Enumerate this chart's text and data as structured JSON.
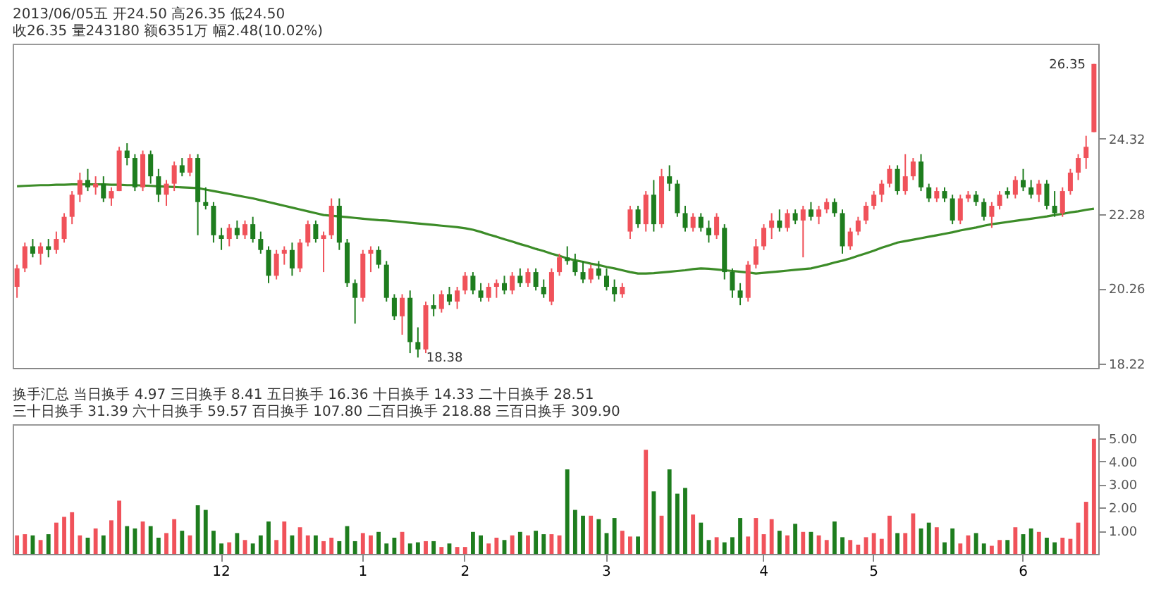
{
  "chart_data": [
    {
      "type": "candlestick",
      "subtitle": "2013/06/05五 开24.50 高26.35 低24.50 收26.35 量243180 额6351万 幅2.48(10.02%)",
      "categories": [
        null,
        null,
        null,
        null,
        null,
        null,
        null,
        null,
        null,
        null,
        null,
        null,
        null,
        null,
        null,
        null,
        null,
        null,
        null,
        null,
        null,
        null,
        null,
        null,
        null,
        null,
        "12",
        null,
        null,
        null,
        null,
        null,
        null,
        null,
        null,
        null,
        null,
        null,
        null,
        null,
        null,
        null,
        null,
        null,
        "1",
        null,
        null,
        null,
        null,
        null,
        null,
        null,
        null,
        null,
        null,
        null,
        null,
        "2",
        null,
        null,
        null,
        null,
        null,
        null,
        null,
        null,
        null,
        null,
        null,
        null,
        null,
        null,
        null,
        null,
        null,
        "3",
        null,
        null,
        null,
        null,
        null,
        null,
        null,
        null,
        null,
        null,
        null,
        null,
        null,
        null,
        null,
        null,
        null,
        null,
        null,
        "4",
        null,
        null,
        null,
        null,
        null,
        null,
        null,
        null,
        null,
        null,
        null,
        null,
        null,
        "5",
        null,
        null,
        null,
        null,
        null,
        null,
        null,
        null,
        null,
        null,
        null,
        null,
        null,
        null,
        null,
        null,
        null,
        null,
        "6",
        null,
        null,
        null,
        null,
        null,
        null,
        null,
        null,
        null
      ],
      "ohlc": [
        [
          20.3,
          20.9,
          20.0,
          20.8
        ],
        [
          20.8,
          21.5,
          20.7,
          21.4
        ],
        [
          21.4,
          21.6,
          21.1,
          21.2
        ],
        [
          21.2,
          21.5,
          20.9,
          21.4
        ],
        [
          21.4,
          21.6,
          21.1,
          21.3
        ],
        [
          21.3,
          21.8,
          21.2,
          21.6
        ],
        [
          21.6,
          22.3,
          21.5,
          22.2
        ],
        [
          22.2,
          22.9,
          22.0,
          22.8
        ],
        [
          22.8,
          23.4,
          22.6,
          23.2
        ],
        [
          23.2,
          23.5,
          22.9,
          23.0
        ],
        [
          23.0,
          23.3,
          22.8,
          23.1
        ],
        [
          23.1,
          23.3,
          22.6,
          22.7
        ],
        [
          22.7,
          23.0,
          22.5,
          22.9
        ],
        [
          22.9,
          24.1,
          22.9,
          24.0
        ],
        [
          24.0,
          24.2,
          23.6,
          23.8
        ],
        [
          23.8,
          23.9,
          22.9,
          23.0
        ],
        [
          23.0,
          24.0,
          22.9,
          23.9
        ],
        [
          23.9,
          24.0,
          23.1,
          23.3
        ],
        [
          23.3,
          23.5,
          22.6,
          22.8
        ],
        [
          22.8,
          23.2,
          22.5,
          23.1
        ],
        [
          23.1,
          23.7,
          22.9,
          23.6
        ],
        [
          23.6,
          23.8,
          23.3,
          23.4
        ],
        [
          23.4,
          23.9,
          23.3,
          23.8
        ],
        [
          23.8,
          23.9,
          21.7,
          22.6
        ],
        [
          22.6,
          23.0,
          22.4,
          22.5
        ],
        [
          22.5,
          22.6,
          21.5,
          21.7
        ],
        [
          21.7,
          21.9,
          21.3,
          21.6
        ],
        [
          21.6,
          22.0,
          21.4,
          21.9
        ],
        [
          21.9,
          22.1,
          21.6,
          21.7
        ],
        [
          21.7,
          22.1,
          21.6,
          22.0
        ],
        [
          22.0,
          22.2,
          21.5,
          21.6
        ],
        [
          21.6,
          21.8,
          21.2,
          21.3
        ],
        [
          21.3,
          21.4,
          20.4,
          20.6
        ],
        [
          20.6,
          21.3,
          20.5,
          21.2
        ],
        [
          21.2,
          21.4,
          20.9,
          21.3
        ],
        [
          21.3,
          21.5,
          20.6,
          20.8
        ],
        [
          20.8,
          21.6,
          20.7,
          21.5
        ],
        [
          21.5,
          22.1,
          21.4,
          22.0
        ],
        [
          22.0,
          22.1,
          21.5,
          21.6
        ],
        [
          21.6,
          21.8,
          20.7,
          21.7
        ],
        [
          21.7,
          22.7,
          21.6,
          22.5
        ],
        [
          22.5,
          22.7,
          21.3,
          21.5
        ],
        [
          21.5,
          21.6,
          20.3,
          20.4
        ],
        [
          20.4,
          20.5,
          19.3,
          20.0
        ],
        [
          20.0,
          21.3,
          19.9,
          21.2
        ],
        [
          21.2,
          21.4,
          20.7,
          21.3
        ],
        [
          21.3,
          21.4,
          20.8,
          20.9
        ],
        [
          20.9,
          21.0,
          19.9,
          20.0
        ],
        [
          20.0,
          20.1,
          19.4,
          19.5
        ],
        [
          19.5,
          20.1,
          19.0,
          20.0
        ],
        [
          20.0,
          20.2,
          18.5,
          18.8
        ],
        [
          18.8,
          19.2,
          18.38,
          18.6
        ],
        [
          18.6,
          19.9,
          18.5,
          19.8
        ],
        [
          19.8,
          20.1,
          19.5,
          19.7
        ],
        [
          19.7,
          20.2,
          19.6,
          20.1
        ],
        [
          20.1,
          20.3,
          19.8,
          19.9
        ],
        [
          19.9,
          20.3,
          19.7,
          20.2
        ],
        [
          20.2,
          20.7,
          20.1,
          20.6
        ],
        [
          20.6,
          20.7,
          20.1,
          20.2
        ],
        [
          20.2,
          20.4,
          19.9,
          20.0
        ],
        [
          20.0,
          20.4,
          19.9,
          20.3
        ],
        [
          20.3,
          20.5,
          20.0,
          20.4
        ],
        [
          20.4,
          20.6,
          20.1,
          20.2
        ],
        [
          20.2,
          20.7,
          20.1,
          20.6
        ],
        [
          20.6,
          20.8,
          20.3,
          20.4
        ],
        [
          20.4,
          20.8,
          20.3,
          20.7
        ],
        [
          20.7,
          20.8,
          20.2,
          20.3
        ],
        [
          20.3,
          20.5,
          20.0,
          20.1
        ],
        [
          19.9,
          20.8,
          19.8,
          20.7
        ],
        [
          20.7,
          21.2,
          20.6,
          21.1
        ],
        [
          21.1,
          21.4,
          20.9,
          21.0
        ],
        [
          21.0,
          21.2,
          20.6,
          20.7
        ],
        [
          20.7,
          21.0,
          20.4,
          20.5
        ],
        [
          20.5,
          20.9,
          20.4,
          20.8
        ],
        [
          20.8,
          21.0,
          20.5,
          20.6
        ],
        [
          20.6,
          20.8,
          20.2,
          20.3
        ],
        [
          20.3,
          20.5,
          19.9,
          20.1
        ],
        [
          20.1,
          20.4,
          20.0,
          20.3
        ],
        [
          21.8,
          22.5,
          21.6,
          22.4
        ],
        [
          22.4,
          22.5,
          21.9,
          22.0
        ],
        [
          22.0,
          22.9,
          21.8,
          22.8
        ],
        [
          22.8,
          23.2,
          21.8,
          22.0
        ],
        [
          22.0,
          23.5,
          21.9,
          23.3
        ],
        [
          23.3,
          23.6,
          22.9,
          23.1
        ],
        [
          23.1,
          23.2,
          22.2,
          22.3
        ],
        [
          22.3,
          22.5,
          21.8,
          21.9
        ],
        [
          21.9,
          22.3,
          21.8,
          22.2
        ],
        [
          22.2,
          22.3,
          21.8,
          21.9
        ],
        [
          21.9,
          22.1,
          21.5,
          21.7
        ],
        [
          21.7,
          22.3,
          21.6,
          22.2
        ],
        [
          21.9,
          22.0,
          20.5,
          20.7
        ],
        [
          20.7,
          20.8,
          20.0,
          20.2
        ],
        [
          20.2,
          20.4,
          19.8,
          20.0
        ],
        [
          20.0,
          21.0,
          19.9,
          20.9
        ],
        [
          20.9,
          21.6,
          20.8,
          21.4
        ],
        [
          21.4,
          22.0,
          21.3,
          21.9
        ],
        [
          21.9,
          22.3,
          21.6,
          22.1
        ],
        [
          22.1,
          22.4,
          21.8,
          21.9
        ],
        [
          21.9,
          22.4,
          21.8,
          22.3
        ],
        [
          22.3,
          22.4,
          22.0,
          22.1
        ],
        [
          22.1,
          22.5,
          21.1,
          22.4
        ],
        [
          22.4,
          22.6,
          22.1,
          22.2
        ],
        [
          22.2,
          22.5,
          22.0,
          22.4
        ],
        [
          22.4,
          22.7,
          22.3,
          22.6
        ],
        [
          22.6,
          22.7,
          22.2,
          22.3
        ],
        [
          22.3,
          22.4,
          21.2,
          21.4
        ],
        [
          21.4,
          21.9,
          21.3,
          21.8
        ],
        [
          21.8,
          22.2,
          21.7,
          22.1
        ],
        [
          22.1,
          22.6,
          22.0,
          22.5
        ],
        [
          22.5,
          22.9,
          22.4,
          22.8
        ],
        [
          22.8,
          23.2,
          22.6,
          23.1
        ],
        [
          23.1,
          23.6,
          23.0,
          23.5
        ],
        [
          23.5,
          23.6,
          22.8,
          22.9
        ],
        [
          22.9,
          23.9,
          22.8,
          23.3
        ],
        [
          23.3,
          23.8,
          23.2,
          23.7
        ],
        [
          23.7,
          23.9,
          22.9,
          23.0
        ],
        [
          23.0,
          23.1,
          22.6,
          22.7
        ],
        [
          22.7,
          23.0,
          22.6,
          22.9
        ],
        [
          22.9,
          23.0,
          22.6,
          22.7
        ],
        [
          22.7,
          22.8,
          22.0,
          22.1
        ],
        [
          22.1,
          22.8,
          22.0,
          22.7
        ],
        [
          22.7,
          22.9,
          22.6,
          22.8
        ],
        [
          22.8,
          22.9,
          22.5,
          22.6
        ],
        [
          22.6,
          22.7,
          22.1,
          22.2
        ],
        [
          22.2,
          22.6,
          21.9,
          22.5
        ],
        [
          22.5,
          22.9,
          22.4,
          22.8
        ],
        [
          22.9,
          23.0,
          22.7,
          22.8
        ],
        [
          22.8,
          23.3,
          22.7,
          23.2
        ],
        [
          23.2,
          23.5,
          22.9,
          23.0
        ],
        [
          23.0,
          23.2,
          22.7,
          22.8
        ],
        [
          22.8,
          23.2,
          22.6,
          23.1
        ],
        [
          23.1,
          23.2,
          22.4,
          22.5
        ],
        [
          22.5,
          22.9,
          22.2,
          22.3
        ],
        [
          22.3,
          23.0,
          22.2,
          22.9
        ],
        [
          22.9,
          23.5,
          22.8,
          23.4
        ],
        [
          23.4,
          23.9,
          23.2,
          23.8
        ],
        [
          23.8,
          24.4,
          23.5,
          24.1
        ],
        [
          24.5,
          26.35,
          24.5,
          26.35
        ]
      ],
      "colors": [
        "#f0525a",
        "#f0525a",
        "#1e7d1e",
        "#f0525a",
        "#1e7d1e",
        "#f0525a",
        "#f0525a",
        "#f0525a",
        "#f0525a",
        "#1e7d1e",
        "#f0525a",
        "#1e7d1e",
        "#f0525a",
        "#f0525a",
        "#1e7d1e",
        "#1e7d1e",
        "#f0525a",
        "#1e7d1e",
        "#1e7d1e",
        "#f0525a",
        "#f0525a",
        "#1e7d1e",
        "#f0525a",
        "#1e7d1e",
        "#1e7d1e",
        "#1e7d1e",
        "#1e7d1e",
        "#f0525a",
        "#1e7d1e",
        "#f0525a",
        "#1e7d1e",
        "#1e7d1e",
        "#1e7d1e",
        "#f0525a",
        "#f0525a",
        "#1e7d1e",
        "#f0525a",
        "#f0525a",
        "#1e7d1e",
        "#f0525a",
        "#f0525a",
        "#1e7d1e",
        "#1e7d1e",
        "#1e7d1e",
        "#f0525a",
        "#f0525a",
        "#1e7d1e",
        "#1e7d1e",
        "#1e7d1e",
        "#f0525a",
        "#1e7d1e",
        "#1e7d1e",
        "#f0525a",
        "#1e7d1e",
        "#f0525a",
        "#1e7d1e",
        "#f0525a",
        "#f0525a",
        "#1e7d1e",
        "#1e7d1e",
        "#f0525a",
        "#f0525a",
        "#1e7d1e",
        "#f0525a",
        "#1e7d1e",
        "#f0525a",
        "#1e7d1e",
        "#1e7d1e",
        "#f0525a",
        "#f0525a",
        "#1e7d1e",
        "#1e7d1e",
        "#1e7d1e",
        "#f0525a",
        "#1e7d1e",
        "#1e7d1e",
        "#1e7d1e",
        "#f0525a",
        "#f0525a",
        "#1e7d1e",
        "#f0525a",
        "#1e7d1e",
        "#f0525a",
        "#1e7d1e",
        "#1e7d1e",
        "#1e7d1e",
        "#f0525a",
        "#1e7d1e",
        "#1e7d1e",
        "#f0525a",
        "#1e7d1e",
        "#1e7d1e",
        "#1e7d1e",
        "#f0525a",
        "#f0525a",
        "#f0525a",
        "#f0525a",
        "#1e7d1e",
        "#f0525a",
        "#1e7d1e",
        "#f0525a",
        "#1e7d1e",
        "#f0525a",
        "#f0525a",
        "#1e7d1e",
        "#1e7d1e",
        "#f0525a",
        "#f0525a",
        "#f0525a",
        "#f0525a",
        "#f0525a",
        "#f0525a",
        "#1e7d1e",
        "#f0525a",
        "#f0525a",
        "#1e7d1e",
        "#1e7d1e",
        "#f0525a",
        "#1e7d1e",
        "#1e7d1e",
        "#f0525a",
        "#f0525a",
        "#1e7d1e",
        "#1e7d1e",
        "#f0525a",
        "#f0525a",
        "#1e7d1e",
        "#f0525a",
        "#1e7d1e",
        "#1e7d1e",
        "#f0525a",
        "#1e7d1e",
        "#1e7d1e",
        "#f0525a",
        "#f0525a",
        "#f0525a",
        "#f0525a",
        "#f0525a"
      ],
      "series": [
        {
          "type": "line",
          "color": "#3c8c28",
          "values": [
            23.03,
            23.04,
            23.05,
            23.06,
            23.06,
            23.07,
            23.07,
            23.08,
            23.08,
            23.08,
            23.08,
            23.08,
            23.07,
            23.07,
            23.06,
            23.06,
            23.05,
            23.04,
            23.03,
            23.02,
            23.01,
            23.0,
            22.99,
            22.98,
            22.94,
            22.9,
            22.86,
            22.82,
            22.78,
            22.74,
            22.7,
            22.65,
            22.6,
            22.55,
            22.5,
            22.45,
            22.4,
            22.35,
            22.3,
            22.25,
            22.23,
            22.21,
            22.19,
            22.17,
            22.15,
            22.13,
            22.11,
            22.1,
            22.08,
            22.06,
            22.04,
            22.02,
            22.0,
            21.98,
            21.96,
            21.94,
            21.92,
            21.89,
            21.85,
            21.79,
            21.72,
            21.66,
            21.59,
            21.53,
            21.46,
            21.4,
            21.33,
            21.27,
            21.2,
            21.14,
            21.07,
            21.02,
            20.98,
            20.93,
            20.89,
            20.84,
            20.8,
            20.75,
            20.7,
            20.66,
            20.66,
            20.67,
            20.69,
            20.71,
            20.73,
            20.75,
            20.78,
            20.8,
            20.79,
            20.77,
            20.75,
            20.73,
            20.71,
            20.69,
            20.66,
            20.68,
            20.7,
            20.72,
            20.74,
            20.76,
            20.78,
            20.8,
            20.85,
            20.9,
            20.96,
            21.01,
            21.07,
            21.14,
            21.21,
            21.28,
            21.36,
            21.43,
            21.5,
            21.54,
            21.58,
            21.62,
            21.66,
            21.7,
            21.74,
            21.78,
            21.83,
            21.87,
            21.91,
            21.96,
            22.0,
            22.03,
            22.06,
            22.09,
            22.12,
            22.15,
            22.18,
            22.21,
            22.25,
            22.28,
            22.32,
            22.35,
            22.39,
            22.42
          ]
        }
      ],
      "ylim": [
        18.1,
        26.9
      ],
      "yticks": [
        18.22,
        20.26,
        22.28,
        24.32
      ],
      "tick_labels": "y",
      "annotations": [
        "18.38",
        "26.35"
      ]
    },
    {
      "type": "bar",
      "title": "换手汇总 当日换手 4.97 三日换手 8.41 五日换手 16.36 十日换手 14.33 二十日换手 28.51 三十日换手 31.39 六十日换手 59.57 百日换手 107.80 二百日换手 218.88 三百日换手 309.90",
      "categories": [
        null,
        null,
        null,
        null,
        null,
        null,
        null,
        null,
        null,
        null,
        null,
        null,
        null,
        null,
        null,
        null,
        null,
        null,
        null,
        null,
        null,
        null,
        null,
        null,
        null,
        null,
        "12",
        null,
        null,
        null,
        null,
        null,
        null,
        null,
        null,
        null,
        null,
        null,
        null,
        null,
        null,
        null,
        null,
        null,
        "1",
        null,
        null,
        null,
        null,
        null,
        null,
        null,
        null,
        null,
        null,
        null,
        null,
        "2",
        null,
        null,
        null,
        null,
        null,
        null,
        null,
        null,
        null,
        null,
        null,
        null,
        null,
        null,
        null,
        null,
        null,
        "3",
        null,
        null,
        null,
        null,
        null,
        null,
        null,
        null,
        null,
        null,
        null,
        null,
        null,
        null,
        null,
        null,
        null,
        null,
        null,
        "4",
        null,
        null,
        null,
        null,
        null,
        null,
        null,
        null,
        null,
        null,
        null,
        null,
        null,
        "5",
        null,
        null,
        null,
        null,
        null,
        null,
        null,
        null,
        null,
        null,
        null,
        null,
        null,
        null,
        null,
        null,
        null,
        null,
        "6",
        null,
        null,
        null,
        null,
        null,
        null,
        null,
        null,
        null
      ],
      "values": [
        0.8,
        0.85,
        0.8,
        0.6,
        0.85,
        1.35,
        1.6,
        1.8,
        0.8,
        0.7,
        1.1,
        0.8,
        1.45,
        2.3,
        1.2,
        1.1,
        1.4,
        1.2,
        0.7,
        0.9,
        1.5,
        1.0,
        0.8,
        2.1,
        1.9,
        1.0,
        0.45,
        0.5,
        0.9,
        0.6,
        0.45,
        0.8,
        1.4,
        0.6,
        1.4,
        0.8,
        1.15,
        0.8,
        0.8,
        0.55,
        0.7,
        0.55,
        1.2,
        0.55,
        0.9,
        0.8,
        0.95,
        0.45,
        0.7,
        0.95,
        0.45,
        0.5,
        0.55,
        0.55,
        0.3,
        0.45,
        0.3,
        0.3,
        0.95,
        0.8,
        0.45,
        0.7,
        0.6,
        0.8,
        0.95,
        0.8,
        1.0,
        0.85,
        0.85,
        0.8,
        3.65,
        1.9,
        1.65,
        1.65,
        1.5,
        0.9,
        1.55,
        1.0,
        0.75,
        0.75,
        4.5,
        2.7,
        1.65,
        3.65,
        2.6,
        2.85,
        1.7,
        1.35,
        0.6,
        0.72,
        0.5,
        0.72,
        1.55,
        0.75,
        1.55,
        0.85,
        1.5,
        1.0,
        0.8,
        1.3,
        0.95,
        0.95,
        0.8,
        0.6,
        1.4,
        0.72,
        0.6,
        0.4,
        0.72,
        0.9,
        0.65,
        1.65,
        0.9,
        0.9,
        1.75,
        1.1,
        1.35,
        1.15,
        0.5,
        1.1,
        0.45,
        0.8,
        0.9,
        0.45,
        0.35,
        0.6,
        0.6,
        1.15,
        0.85,
        1.1,
        0.95,
        0.7,
        0.5,
        0.7,
        0.65,
        1.35,
        2.25,
        4.97
      ],
      "colors": [
        "#f0525a",
        "#f0525a",
        "#1e7d1e",
        "#f0525a",
        "#1e7d1e",
        "#f0525a",
        "#f0525a",
        "#f0525a",
        "#f0525a",
        "#1e7d1e",
        "#f0525a",
        "#1e7d1e",
        "#f0525a",
        "#f0525a",
        "#1e7d1e",
        "#1e7d1e",
        "#f0525a",
        "#1e7d1e",
        "#1e7d1e",
        "#f0525a",
        "#f0525a",
        "#1e7d1e",
        "#f0525a",
        "#1e7d1e",
        "#1e7d1e",
        "#1e7d1e",
        "#1e7d1e",
        "#f0525a",
        "#1e7d1e",
        "#f0525a",
        "#1e7d1e",
        "#1e7d1e",
        "#1e7d1e",
        "#f0525a",
        "#f0525a",
        "#1e7d1e",
        "#f0525a",
        "#f0525a",
        "#1e7d1e",
        "#f0525a",
        "#f0525a",
        "#1e7d1e",
        "#1e7d1e",
        "#1e7d1e",
        "#f0525a",
        "#f0525a",
        "#1e7d1e",
        "#1e7d1e",
        "#1e7d1e",
        "#f0525a",
        "#1e7d1e",
        "#1e7d1e",
        "#f0525a",
        "#1e7d1e",
        "#f0525a",
        "#1e7d1e",
        "#f0525a",
        "#f0525a",
        "#1e7d1e",
        "#1e7d1e",
        "#f0525a",
        "#f0525a",
        "#1e7d1e",
        "#f0525a",
        "#1e7d1e",
        "#f0525a",
        "#1e7d1e",
        "#1e7d1e",
        "#f0525a",
        "#f0525a",
        "#1e7d1e",
        "#1e7d1e",
        "#1e7d1e",
        "#f0525a",
        "#1e7d1e",
        "#1e7d1e",
        "#1e7d1e",
        "#f0525a",
        "#f0525a",
        "#1e7d1e",
        "#f0525a",
        "#1e7d1e",
        "#f0525a",
        "#1e7d1e",
        "#1e7d1e",
        "#1e7d1e",
        "#f0525a",
        "#1e7d1e",
        "#1e7d1e",
        "#f0525a",
        "#1e7d1e",
        "#1e7d1e",
        "#1e7d1e",
        "#f0525a",
        "#f0525a",
        "#f0525a",
        "#f0525a",
        "#1e7d1e",
        "#f0525a",
        "#1e7d1e",
        "#f0525a",
        "#1e7d1e",
        "#f0525a",
        "#f0525a",
        "#1e7d1e",
        "#1e7d1e",
        "#f0525a",
        "#f0525a",
        "#f0525a",
        "#f0525a",
        "#f0525a",
        "#f0525a",
        "#1e7d1e",
        "#f0525a",
        "#f0525a",
        "#1e7d1e",
        "#1e7d1e",
        "#f0525a",
        "#1e7d1e",
        "#1e7d1e",
        "#f0525a",
        "#f0525a",
        "#1e7d1e",
        "#1e7d1e",
        "#f0525a",
        "#f0525a",
        "#1e7d1e",
        "#f0525a",
        "#1e7d1e",
        "#1e7d1e",
        "#f0525a",
        "#1e7d1e",
        "#1e7d1e",
        "#f0525a",
        "#f0525a",
        "#f0525a",
        "#f0525a",
        "#f0525a"
      ],
      "ylim": [
        0,
        5.6
      ],
      "yticks": [
        {
          "value": 1,
          "label": "1.00"
        },
        {
          "value": 2,
          "label": "2.00"
        },
        {
          "value": 3,
          "label": "3.00"
        },
        {
          "value": 4,
          "label": "4.00"
        },
        {
          "value": 5,
          "label": "5.00"
        }
      ]
    }
  ]
}
